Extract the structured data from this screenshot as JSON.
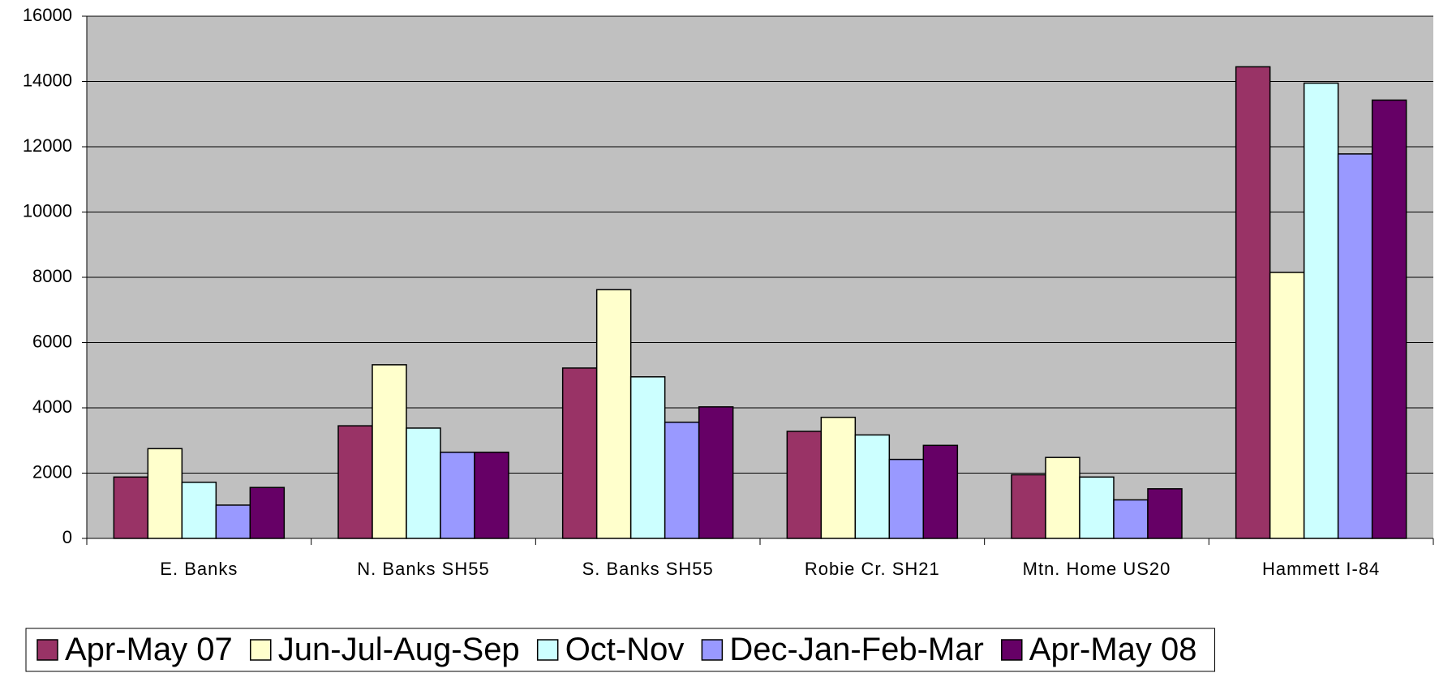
{
  "chart_data": {
    "type": "bar",
    "categories": [
      "E. Banks",
      "N. Banks SH55",
      "S. Banks SH55",
      "Robie Cr. SH21",
      "Mtn. Home US20",
      "Hammett I-84"
    ],
    "series": [
      {
        "name": "Apr-May 07",
        "color": "#993366",
        "values": [
          1880,
          3450,
          5220,
          3280,
          1950,
          14450
        ]
      },
      {
        "name": "Jun-Jul-Aug-Sep",
        "color": "#ffffcc",
        "values": [
          2750,
          5320,
          7620,
          3710,
          2480,
          8150
        ]
      },
      {
        "name": "Oct-Nov",
        "color": "#ccffff",
        "values": [
          1720,
          3380,
          4950,
          3170,
          1880,
          13950
        ]
      },
      {
        "name": "Dec-Jan-Feb-Mar",
        "color": "#9999ff",
        "values": [
          1020,
          2640,
          3560,
          2420,
          1180,
          11780
        ]
      },
      {
        "name": "Apr-May 08",
        "color": "#660066",
        "values": [
          1560,
          2640,
          4030,
          2850,
          1520,
          13430
        ]
      }
    ],
    "ylim": [
      0,
      16000
    ],
    "yticks": [
      0,
      2000,
      4000,
      6000,
      8000,
      10000,
      12000,
      14000,
      16000
    ],
    "grid": true,
    "legend": "bottom"
  }
}
